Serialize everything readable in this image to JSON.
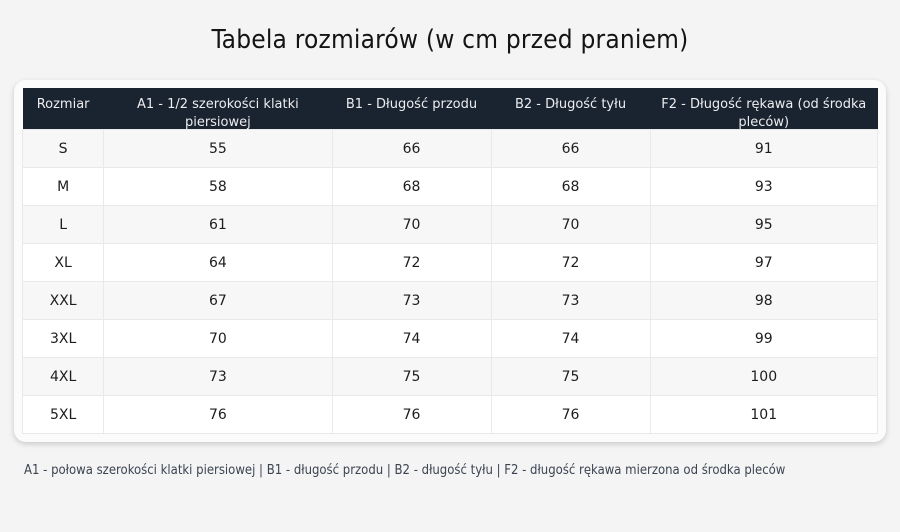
{
  "title": "Tabela rozmiarów (w cm przed praniem)",
  "chart_data": {
    "type": "table",
    "title": "Tabela rozmiarów (w cm przed praniem)",
    "size_column_header": "Rozmiar",
    "categories": [
      "S",
      "M",
      "L",
      "XL",
      "XXL",
      "3XL",
      "4XL",
      "5XL"
    ],
    "series": [
      {
        "name": "A1 - 1/2 szerokości klatki piersiowej",
        "values": [
          55,
          58,
          61,
          64,
          67,
          70,
          73,
          76
        ]
      },
      {
        "name": "B1 - Długość przodu",
        "values": [
          66,
          68,
          70,
          72,
          73,
          74,
          75,
          76
        ]
      },
      {
        "name": "B2 - Długość tyłu",
        "values": [
          66,
          68,
          70,
          72,
          73,
          74,
          75,
          76
        ]
      },
      {
        "name": "F2 - Długość rękawa (od środka pleców)",
        "values": [
          91,
          93,
          95,
          97,
          98,
          99,
          100,
          101
        ]
      }
    ]
  },
  "footer_note": "A1 - połowa szerokości klatki piersiowej | B1 - długość przodu | B2 - długość tyłu | F2 - długość rękawa mierzona od środka pleców",
  "colors": {
    "page_bg": "#f4f4f5",
    "card_bg": "#fbfbfb",
    "header_bg": "#1a2330",
    "header_text": "#ecedef",
    "row_bg": "#ffffff",
    "row_alt_bg": "#f7f7f7",
    "cell_border": "#e9e9e9",
    "cell_text": "#1d1d1d",
    "note_text": "#3b4450"
  }
}
